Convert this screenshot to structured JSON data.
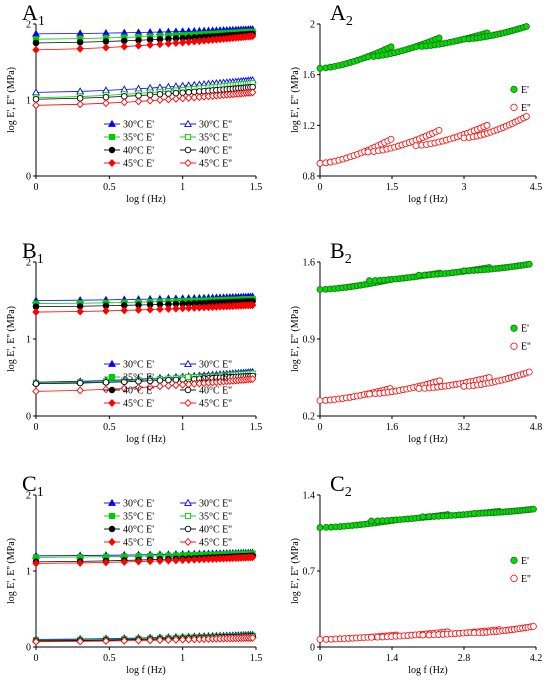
{
  "legend_keys": {
    "storage": "E'",
    "loss": "E''"
  },
  "temperature_labels": [
    "30°C",
    "35°C",
    "40°C",
    "45°C"
  ],
  "chart_data": [
    {
      "id": "A1",
      "label": "A",
      "sub": "1",
      "type": "scatter",
      "xlabel": "log f (Hz)",
      "ylabel": "log E', E'' (MPa)",
      "xlim": [
        0,
        1.5
      ],
      "ylim": [
        0,
        2
      ],
      "xticks": [
        "0",
        "0.5",
        "1",
        "1.5"
      ],
      "yticks": [
        "0",
        "1",
        "2"
      ],
      "legend_position": "lower-center",
      "series": [
        {
          "name": "30°C  E'",
          "color": "#0000ff",
          "marker": "triangle",
          "filled": true,
          "start": 1.87,
          "end": 1.93
        },
        {
          "name": "35°C  E'",
          "color": "#00cc00",
          "marker": "square",
          "filled": true,
          "start": 1.8,
          "end": 1.9
        },
        {
          "name": "40°C  E'",
          "color": "#000000",
          "marker": "circle",
          "filled": true,
          "start": 1.75,
          "end": 1.87
        },
        {
          "name": "45°C  E'",
          "color": "#ff0000",
          "marker": "diamond",
          "filled": true,
          "start": 1.66,
          "end": 1.84
        },
        {
          "name": "30°C  E''",
          "color": "#0000ff",
          "marker": "triangle",
          "filled": false,
          "start": 1.1,
          "end": 1.26
        },
        {
          "name": "35°C  E''",
          "color": "#00cc00",
          "marker": "square",
          "filled": false,
          "start": 1.03,
          "end": 1.22
        },
        {
          "name": "40°C  E''",
          "color": "#000000",
          "marker": "circle",
          "filled": false,
          "start": 1.01,
          "end": 1.17
        },
        {
          "name": "45°C  E''",
          "color": "#ff0000",
          "marker": "diamond",
          "filled": false,
          "start": 0.93,
          "end": 1.1
        }
      ]
    },
    {
      "id": "A2",
      "label": "A",
      "sub": "2",
      "type": "scatter",
      "xlabel": "log f (Hz)",
      "ylabel": "log E', E'' (MPa)",
      "xlim": [
        0,
        4.5
      ],
      "ylim": [
        0.8,
        2.0
      ],
      "xticks": [
        "0",
        "1.5",
        "3",
        "4.5"
      ],
      "yticks": [
        "0.8",
        "1.2",
        "1.6",
        "2"
      ],
      "legend_position": "right",
      "series": [
        {
          "name": "E'",
          "color": "#00dd00",
          "filled": true,
          "segments": [
            [
              0,
              1.48,
              1.65,
              1.82
            ],
            [
              1.0,
              2.48,
              1.74,
              1.89
            ],
            [
              2.0,
              3.48,
              1.82,
              1.93
            ],
            [
              3.0,
              4.3,
              1.88,
              1.98
            ]
          ]
        },
        {
          "name": "E''",
          "color": "#ff0000",
          "filled": false,
          "segments": [
            [
              0,
              1.48,
              0.9,
              1.09
            ],
            [
              1.0,
              2.48,
              0.99,
              1.16
            ],
            [
              2.0,
              3.48,
              1.04,
              1.2
            ],
            [
              3.0,
              4.3,
              1.1,
              1.27
            ]
          ]
        }
      ]
    },
    {
      "id": "B1",
      "label": "B",
      "sub": "1",
      "type": "scatter",
      "xlabel": "log f (Hz)",
      "ylabel": "log E', E'' (MPa)",
      "xlim": [
        0,
        1.5
      ],
      "ylim": [
        0,
        2
      ],
      "xticks": [
        "0",
        "0.5",
        "1",
        "1.5"
      ],
      "yticks": [
        "0",
        "1",
        "2"
      ],
      "legend_position": "lower-center",
      "series": [
        {
          "name": "30°C  E'",
          "color": "#0000ff",
          "marker": "triangle",
          "filled": true,
          "start": 1.5,
          "end": 1.55
        },
        {
          "name": "35°C  E'",
          "color": "#00cc00",
          "marker": "square",
          "filled": true,
          "start": 1.46,
          "end": 1.52
        },
        {
          "name": "40°C  E'",
          "color": "#000000",
          "marker": "circle",
          "filled": true,
          "start": 1.42,
          "end": 1.49
        },
        {
          "name": "45°C  E'",
          "color": "#ff0000",
          "marker": "diamond",
          "filled": true,
          "start": 1.35,
          "end": 1.44
        },
        {
          "name": "30°C  E''",
          "color": "#0000ff",
          "marker": "triangle",
          "filled": false,
          "start": 0.44,
          "end": 0.57
        },
        {
          "name": "35°C  E''",
          "color": "#00cc00",
          "marker": "square",
          "filled": false,
          "start": 0.43,
          "end": 0.55
        },
        {
          "name": "40°C  E''",
          "color": "#000000",
          "marker": "circle",
          "filled": false,
          "start": 0.42,
          "end": 0.52
        },
        {
          "name": "45°C  E''",
          "color": "#ff0000",
          "marker": "diamond",
          "filled": false,
          "start": 0.32,
          "end": 0.48
        }
      ]
    },
    {
      "id": "B2",
      "label": "B",
      "sub": "2",
      "type": "scatter",
      "xlabel": "log f (Hz)",
      "ylabel": "log E', E'' (MPa)",
      "xlim": [
        0,
        4.8
      ],
      "ylim": [
        0.2,
        1.6
      ],
      "xticks": [
        "0",
        "1.6",
        "3.2",
        "4.8"
      ],
      "yticks": [
        "0.2",
        "0.9",
        "1.6"
      ],
      "legend_position": "right",
      "series": [
        {
          "name": "E'",
          "color": "#00dd00",
          "filled": true,
          "segments": [
            [
              0,
              1.56,
              1.35,
              1.44
            ],
            [
              1.1,
              2.66,
              1.43,
              1.5
            ],
            [
              2.2,
              3.76,
              1.48,
              1.55
            ],
            [
              3.2,
              4.65,
              1.52,
              1.58
            ]
          ]
        },
        {
          "name": "E''",
          "color": "#ff0000",
          "filled": false,
          "segments": [
            [
              0,
              1.56,
              0.34,
              0.45
            ],
            [
              1.1,
              2.66,
              0.4,
              0.52
            ],
            [
              2.2,
              3.76,
              0.45,
              0.55
            ],
            [
              3.2,
              4.65,
              0.47,
              0.6
            ]
          ]
        }
      ]
    },
    {
      "id": "C1",
      "label": "C",
      "sub": "1",
      "type": "scatter",
      "xlabel": "log f (Hz)",
      "ylabel": "log E', E'' (MPa)",
      "xlim": [
        0,
        1.5
      ],
      "ylim": [
        0,
        2
      ],
      "xticks": [
        "0",
        "0.5",
        "1",
        "1.5"
      ],
      "yticks": [
        "0",
        "1",
        "2"
      ],
      "legend_position": "upper-center",
      "series": [
        {
          "name": "30°C  E'",
          "color": "#0000ff",
          "marker": "triangle",
          "filled": true,
          "start": 1.2,
          "end": 1.24
        },
        {
          "name": "35°C  E'",
          "color": "#00cc00",
          "marker": "square",
          "filled": true,
          "start": 1.18,
          "end": 1.23
        },
        {
          "name": "40°C  E'",
          "color": "#000000",
          "marker": "circle",
          "filled": true,
          "start": 1.12,
          "end": 1.2
        },
        {
          "name": "45°C  E'",
          "color": "#ff0000",
          "marker": "diamond",
          "filled": true,
          "start": 1.1,
          "end": 1.18
        },
        {
          "name": "30°C  E''",
          "color": "#0000ff",
          "marker": "triangle",
          "filled": false,
          "start": 0.1,
          "end": 0.16
        },
        {
          "name": "35°C  E''",
          "color": "#00cc00",
          "marker": "square",
          "filled": false,
          "start": 0.09,
          "end": 0.15
        },
        {
          "name": "40°C  E''",
          "color": "#000000",
          "marker": "circle",
          "filled": false,
          "start": 0.08,
          "end": 0.14
        },
        {
          "name": "45°C  E''",
          "color": "#ff0000",
          "marker": "diamond",
          "filled": false,
          "start": 0.07,
          "end": 0.12
        }
      ]
    },
    {
      "id": "C2",
      "label": "C",
      "sub": "2",
      "type": "scatter",
      "xlabel": "log f (Hz)",
      "ylabel": "log E', E'' (MPa)",
      "xlim": [
        0,
        4.2
      ],
      "ylim": [
        0,
        1.4
      ],
      "xticks": [
        "0",
        "1.4",
        "2.8",
        "4.2"
      ],
      "yticks": [
        "0",
        "0.7",
        "1.4"
      ],
      "legend_position": "right",
      "series": [
        {
          "name": "E'",
          "color": "#00dd00",
          "filled": true,
          "segments": [
            [
              0,
              1.48,
              1.1,
              1.17
            ],
            [
              1.0,
              2.48,
              1.16,
              1.22
            ],
            [
              2.0,
              3.48,
              1.2,
              1.25
            ],
            [
              3.0,
              4.15,
              1.23,
              1.27
            ]
          ]
        },
        {
          "name": "E''",
          "color": "#ff0000",
          "filled": false,
          "segments": [
            [
              0,
              1.48,
              0.07,
              0.11
            ],
            [
              1.0,
              2.48,
              0.09,
              0.14
            ],
            [
              2.0,
              3.48,
              0.11,
              0.16
            ],
            [
              3.0,
              4.15,
              0.13,
              0.19
            ]
          ]
        }
      ]
    }
  ]
}
